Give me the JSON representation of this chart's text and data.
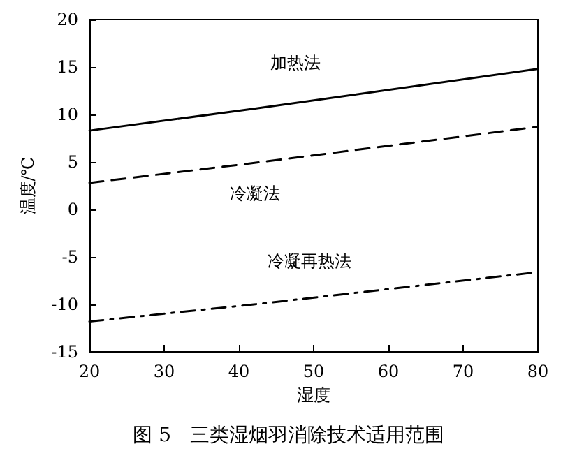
{
  "chart_data": {
    "type": "line",
    "title": "图 5   三类湿烟羽消除技术适用范围",
    "xlabel": "湿度",
    "ylabel": "温度/℃",
    "xlim": [
      20,
      80
    ],
    "xticks": [
      20,
      30,
      40,
      50,
      60,
      70,
      80
    ],
    "ylim": [
      -15,
      20
    ],
    "yticks": [
      -15,
      -10,
      -5,
      0,
      5,
      10,
      15,
      20
    ],
    "grid": false,
    "legend": false,
    "marker": "none",
    "series": [
      {
        "name": "加热法",
        "color": "#000000",
        "line_style": "solid",
        "x": [
          20,
          42,
          80
        ],
        "values": [
          8.3,
          10.6,
          14.8
        ]
      },
      {
        "name": "冷凝法",
        "color": "#000000",
        "line_style": "dashed",
        "x": [
          20,
          41,
          80
        ],
        "values": [
          2.8,
          4.8,
          8.7
        ]
      },
      {
        "name": "冷凝再热法",
        "color": "#000000",
        "line_style": "dotted",
        "x": [
          20,
          42,
          80
        ],
        "values": [
          -11.8,
          -10.0,
          -6.6
        ]
      }
    ]
  }
}
